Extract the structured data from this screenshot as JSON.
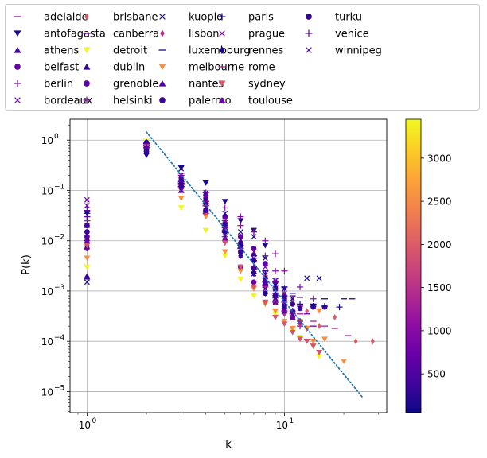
{
  "chart_data": {
    "type": "scatter",
    "title": "",
    "xlabel": "k",
    "ylabel": "P(k)",
    "xscale": "log",
    "yscale": "log",
    "xlim": [
      0.82,
      33
    ],
    "ylim": [
      3.8e-06,
      2.6
    ],
    "x_ticks": [
      {
        "value": 1,
        "base": "10",
        "exp": "0"
      },
      {
        "value": 10,
        "base": "10",
        "exp": "1"
      }
    ],
    "y_ticks": [
      {
        "value": 1,
        "base": "10",
        "exp": "0"
      },
      {
        "value": 0.1,
        "base": "10",
        "exp": "−1"
      },
      {
        "value": 0.01,
        "base": "10",
        "exp": "−2"
      },
      {
        "value": 0.001,
        "base": "10",
        "exp": "−3"
      },
      {
        "value": 0.0001,
        "base": "10",
        "exp": "−4"
      },
      {
        "value": 1e-05,
        "base": "10",
        "exp": "−5"
      }
    ],
    "grid": true,
    "legend_position": "top",
    "colormap": "plasma",
    "colorbar": {
      "min": 50,
      "max": 3450,
      "ticks": [
        500,
        1000,
        1500,
        2000,
        2500,
        3000
      ]
    },
    "fit_line": {
      "style": "dotted",
      "color": "#1f77b4",
      "x": [
        2,
        25
      ],
      "y": [
        1.45,
        7.5e-06
      ]
    },
    "series": [
      {
        "name": "adelaide",
        "marker": "_",
        "value": 1050,
        "x": [
          1,
          2,
          3,
          4,
          5,
          6,
          7,
          8,
          9,
          10
        ],
        "y": [
          0.03,
          0.72,
          0.22,
          0.06,
          0.025,
          0.009,
          0.004,
          0.0018,
          0.0009,
          0.0004
        ]
      },
      {
        "name": "antofagasta",
        "marker": "v",
        "value": 140,
        "x": [
          1,
          2,
          3,
          4,
          5,
          6,
          7,
          8
        ],
        "y": [
          0.035,
          0.5,
          0.28,
          0.14,
          0.06,
          0.025,
          0.016,
          0.008
        ]
      },
      {
        "name": "athens",
        "marker": "^",
        "value": 420,
        "x": [
          1,
          2,
          3,
          4,
          5,
          6,
          7,
          8,
          9
        ],
        "y": [
          0.002,
          0.6,
          0.15,
          0.07,
          0.02,
          0.008,
          0.003,
          0.0015,
          0.0007
        ]
      },
      {
        "name": "belfast",
        "marker": "o",
        "value": 720,
        "x": [
          1,
          2,
          3,
          4,
          5,
          6,
          7,
          8,
          9,
          10,
          11
        ],
        "y": [
          0.007,
          0.7,
          0.12,
          0.035,
          0.01,
          0.003,
          0.0015,
          0.0009,
          0.0006,
          0.0004,
          0.0003
        ]
      },
      {
        "name": "berlin",
        "marker": "+",
        "value": 1000,
        "x": [
          1,
          2,
          3,
          4,
          5,
          6,
          7,
          8,
          9,
          10,
          12,
          14
        ],
        "y": [
          0.045,
          0.8,
          0.2,
          0.09,
          0.045,
          0.02,
          0.015,
          0.01,
          0.0055,
          0.0025,
          0.0012,
          0.0007
        ]
      },
      {
        "name": "bordeaux",
        "marker": "x",
        "value": 760,
        "x": [
          1,
          2,
          3,
          4,
          5,
          6,
          7,
          8,
          9,
          10
        ],
        "y": [
          0.065,
          0.62,
          0.17,
          0.055,
          0.02,
          0.008,
          0.0045,
          0.0022,
          0.0011,
          0.0006
        ]
      },
      {
        "name": "brisbane",
        "marker": "d",
        "value": 2000,
        "x": [
          3,
          6,
          8,
          11,
          13,
          15,
          18,
          23,
          28
        ],
        "y": [
          0.15,
          0.006,
          0.002,
          0.0007,
          0.0004,
          0.0002,
          0.0003,
          0.0001,
          0.0001
        ]
      },
      {
        "name": "canberra",
        "marker": "_",
        "value": 720,
        "x": [
          1,
          2,
          3,
          4,
          5,
          6,
          7,
          8,
          9,
          10,
          11,
          12,
          13,
          14
        ],
        "y": [
          0.04,
          0.78,
          0.14,
          0.05,
          0.015,
          0.008,
          0.005,
          0.0025,
          0.0015,
          0.0012,
          0.0008,
          0.0005,
          0.00035,
          0.0002
        ]
      },
      {
        "name": "detroit",
        "marker": "v",
        "value": 3420,
        "x": [
          1,
          2,
          3,
          4,
          5,
          6,
          7,
          8,
          9,
          10,
          11,
          12,
          14,
          15
        ],
        "y": [
          0.003,
          0.95,
          0.045,
          0.016,
          0.005,
          0.0017,
          0.0008,
          0.00055,
          0.00035,
          0.00022,
          0.00016,
          0.00012,
          8e-05,
          5e-05
        ]
      },
      {
        "name": "dublin",
        "marker": "^",
        "value": 330,
        "x": [
          1,
          2,
          3,
          4,
          5,
          6,
          7,
          8,
          9,
          10,
          11,
          12
        ],
        "y": [
          0.0019,
          0.75,
          0.1,
          0.06,
          0.02,
          0.01,
          0.0055,
          0.0035,
          0.0012,
          0.0007,
          0.0004,
          0.00025
        ]
      },
      {
        "name": "grenoble",
        "marker": "o",
        "value": 620,
        "x": [
          1,
          2,
          3,
          4,
          5,
          6,
          7,
          8,
          9,
          10
        ],
        "y": [
          0.012,
          0.7,
          0.18,
          0.08,
          0.03,
          0.012,
          0.007,
          0.0035,
          0.0015,
          0.0008
        ]
      },
      {
        "name": "helsinki",
        "marker": "+",
        "value": 900,
        "x": [
          1,
          2,
          3,
          4,
          5,
          6,
          7,
          8,
          9,
          10,
          11,
          12
        ],
        "y": [
          0.025,
          0.85,
          0.12,
          0.035,
          0.012,
          0.03,
          0.015,
          0.005,
          0.0025,
          0.0011,
          0.00035,
          0.0002
        ]
      },
      {
        "name": "kuopio",
        "marker": "x",
        "value": 90,
        "x": [
          1,
          2,
          3,
          4,
          5,
          6,
          7,
          8,
          9,
          10,
          11,
          12,
          13,
          15
        ],
        "y": [
          0.0015,
          0.7,
          0.27,
          0.09,
          0.035,
          0.015,
          0.012,
          0.0045,
          0.0013,
          0.0011,
          0.0007,
          0.00045,
          0.0018,
          0.0018
        ]
      },
      {
        "name": "lisbon",
        "marker": "d",
        "value": 1480,
        "x": [
          1,
          2,
          3,
          4,
          5,
          6,
          7,
          8,
          9,
          10,
          11,
          12,
          13
        ],
        "y": [
          0.01,
          0.85,
          0.15,
          0.06,
          0.02,
          0.007,
          0.003,
          0.0012,
          0.0006,
          0.00035,
          0.0003,
          0.00022,
          0.00018
        ]
      },
      {
        "name": "luxembourg",
        "marker": "_",
        "value": 180,
        "x": [
          1,
          2,
          3,
          4,
          5,
          6,
          7,
          8,
          9,
          10,
          11,
          12,
          14,
          16,
          20,
          22
        ],
        "y": [
          0.045,
          0.55,
          0.12,
          0.05,
          0.02,
          0.009,
          0.0045,
          0.0025,
          0.0018,
          0.0012,
          0.0009,
          0.00075,
          0.00055,
          0.0007,
          0.0007,
          0.0007
        ]
      },
      {
        "name": "melbourne",
        "marker": "v",
        "value": 2550,
        "x": [
          1,
          2,
          3,
          4,
          5,
          6,
          7,
          8,
          9,
          10,
          11,
          12,
          13,
          14,
          15,
          16,
          20
        ],
        "y": [
          0.0045,
          0.7,
          0.07,
          0.03,
          0.006,
          0.0025,
          0.0011,
          0.00055,
          0.0004,
          0.00025,
          0.00018,
          0.00025,
          0.00018,
          0.0001,
          0.0004,
          0.00011,
          4e-05
        ]
      },
      {
        "name": "nantes",
        "marker": "^",
        "value": 560,
        "x": [
          1,
          2,
          3,
          4,
          5,
          6,
          7,
          8,
          9,
          10
        ],
        "y": [
          0.011,
          0.8,
          0.13,
          0.055,
          0.018,
          0.006,
          0.0025,
          0.0014,
          0.0009,
          0.0004
        ]
      },
      {
        "name": "palermo",
        "marker": "o",
        "value": 350,
        "x": [
          1,
          2,
          3,
          4,
          5,
          6,
          7,
          8,
          9,
          10,
          11,
          12,
          14,
          16
        ],
        "y": [
          0.015,
          0.9,
          0.16,
          0.07,
          0.022,
          0.008,
          0.004,
          0.0018,
          0.0011,
          0.0007,
          0.00055,
          0.00045,
          0.00048,
          0.00048
        ]
      },
      {
        "name": "paris",
        "marker": "+",
        "value": 130,
        "x": [
          1,
          2,
          3,
          4,
          5,
          6,
          7,
          8,
          9,
          10,
          12,
          14,
          16,
          19
        ],
        "y": [
          0.035,
          0.9,
          0.14,
          0.055,
          0.02,
          0.008,
          0.004,
          0.0022,
          0.0013,
          0.0008,
          0.00055,
          0.0005,
          0.0005,
          0.00048
        ]
      },
      {
        "name": "prague",
        "marker": "x",
        "value": 850,
        "x": [
          1,
          2,
          3,
          4,
          5,
          6,
          7,
          8,
          9,
          10
        ],
        "y": [
          0.05,
          0.7,
          0.2,
          0.08,
          0.025,
          0.012,
          0.006,
          0.003,
          0.0016,
          0.0009
        ]
      },
      {
        "name": "rennes",
        "marker": "D",
        "value": 120,
        "x": [
          1,
          2,
          3,
          4,
          5,
          6,
          7,
          8
        ],
        "y": [
          0.008,
          0.8,
          0.15,
          0.05,
          0.016,
          0.005,
          0.0022,
          0.0009
        ]
      },
      {
        "name": "rome",
        "marker": "_",
        "value": 1300,
        "x": [
          1,
          2,
          3,
          4,
          5,
          6,
          7,
          8,
          9,
          10,
          12,
          14,
          16,
          18,
          21
        ],
        "y": [
          0.025,
          0.85,
          0.13,
          0.05,
          0.016,
          0.007,
          0.003,
          0.0012,
          0.0006,
          0.0004,
          0.00035,
          0.00025,
          0.0002,
          0.00018,
          0.00013
        ]
      },
      {
        "name": "sydney",
        "marker": "v",
        "value": 1900,
        "x": [
          1,
          2,
          3,
          4,
          5,
          6,
          7,
          8,
          9,
          10,
          11,
          12,
          13,
          14,
          15
        ],
        "y": [
          0.008,
          0.75,
          0.1,
          0.035,
          0.009,
          0.003,
          0.0012,
          0.0006,
          0.0003,
          0.00022,
          0.00015,
          0.00011,
          0.0001,
          8e-05,
          6e-05
        ]
      },
      {
        "name": "toulouse",
        "marker": "^",
        "value": 780,
        "x": [
          1,
          2,
          3,
          4,
          5,
          6,
          7,
          8,
          9,
          10,
          11
        ],
        "y": [
          0.01,
          0.75,
          0.13,
          0.045,
          0.016,
          0.006,
          0.003,
          0.0014,
          0.0008,
          0.0005,
          0.0003
        ]
      },
      {
        "name": "turku",
        "marker": "o",
        "value": 280,
        "x": [
          1,
          2,
          3,
          4,
          5,
          6,
          7,
          8,
          9,
          10,
          11
        ],
        "y": [
          0.02,
          0.6,
          0.12,
          0.04,
          0.015,
          0.006,
          0.0028,
          0.0015,
          0.0008,
          0.0005,
          0.0004
        ]
      },
      {
        "name": "venice",
        "marker": "+",
        "value": 600,
        "x": [
          1,
          2,
          3,
          4,
          5,
          6,
          7,
          8,
          9,
          10,
          11,
          12
        ],
        "y": [
          0.03,
          0.85,
          0.15,
          0.06,
          0.018,
          0.007,
          0.003,
          0.0015,
          0.0009,
          0.0006,
          0.0004,
          0.00025
        ]
      },
      {
        "name": "winnipeg",
        "marker": "x",
        "value": 460,
        "x": [
          1,
          2,
          3,
          4,
          5,
          6,
          7,
          8,
          9,
          10,
          11
        ],
        "y": [
          0.02,
          0.7,
          0.1,
          0.04,
          0.012,
          0.005,
          0.0022,
          0.0011,
          0.0006,
          0.0004,
          0.00035
        ]
      }
    ]
  }
}
